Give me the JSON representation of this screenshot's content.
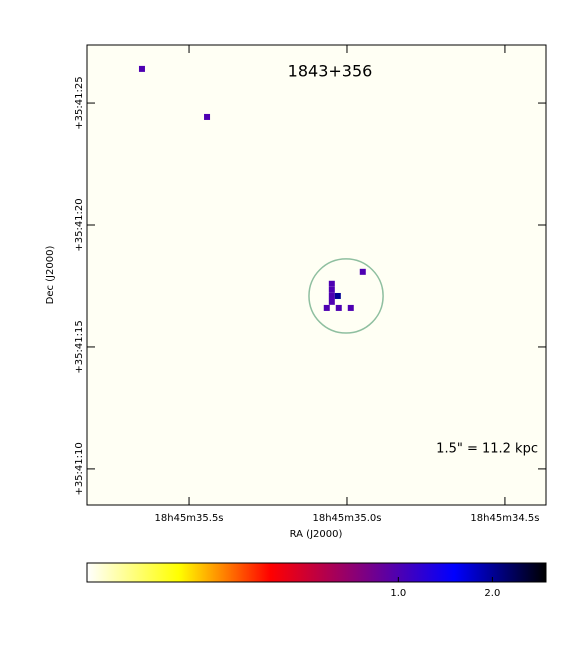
{
  "chart_data": {
    "type": "image",
    "title": "1843+356",
    "annotation": "1.5\" = 11.2 kpc",
    "x_label": "RA (J2000)",
    "y_label": "Dec (J2000)",
    "background": "#fffff4",
    "xlim": [
      35.823,
      34.37
    ],
    "ylim": [
      8.52,
      27.38
    ],
    "xticks": [
      {
        "value": 35.5,
        "label": "18h45m35.5s"
      },
      {
        "value": 35.0,
        "label": "18h45m35.0s"
      },
      {
        "value": 34.5,
        "label": "18h45m34.5s"
      }
    ],
    "yticks": [
      {
        "value": 25,
        "label": "+35:41:25"
      },
      {
        "value": 20,
        "label": "+35:41:20"
      },
      {
        "value": 15,
        "label": "+35:41:15"
      },
      {
        "value": 10,
        "label": "+35:41:10"
      }
    ],
    "x": [
      35.649,
      35.443,
      34.95,
      35.048,
      35.048,
      35.048,
      35.029,
      35.048,
      35.064,
      35.026,
      34.988
    ],
    "y": [
      26.4,
      24.43,
      18.08,
      17.59,
      17.34,
      17.09,
      17.09,
      16.85,
      16.6,
      16.6,
      16.6
    ],
    "values": [
      1,
      1,
      1,
      1,
      1,
      1,
      2,
      1,
      1,
      1,
      1
    ],
    "region": {
      "ra": 35.003,
      "dec": 17.09,
      "radius": 1.52,
      "color": "#8fbfa0"
    },
    "colormap": [
      "#ffffff",
      "#ffff00",
      "#ff0000",
      "#800080",
      "#0000ff",
      "#000000"
    ],
    "clim": [
      -2.31,
      2.57
    ],
    "cticks": [
      {
        "value": 1,
        "label": "1.0"
      },
      {
        "value": 2,
        "label": "2.0"
      }
    ]
  }
}
